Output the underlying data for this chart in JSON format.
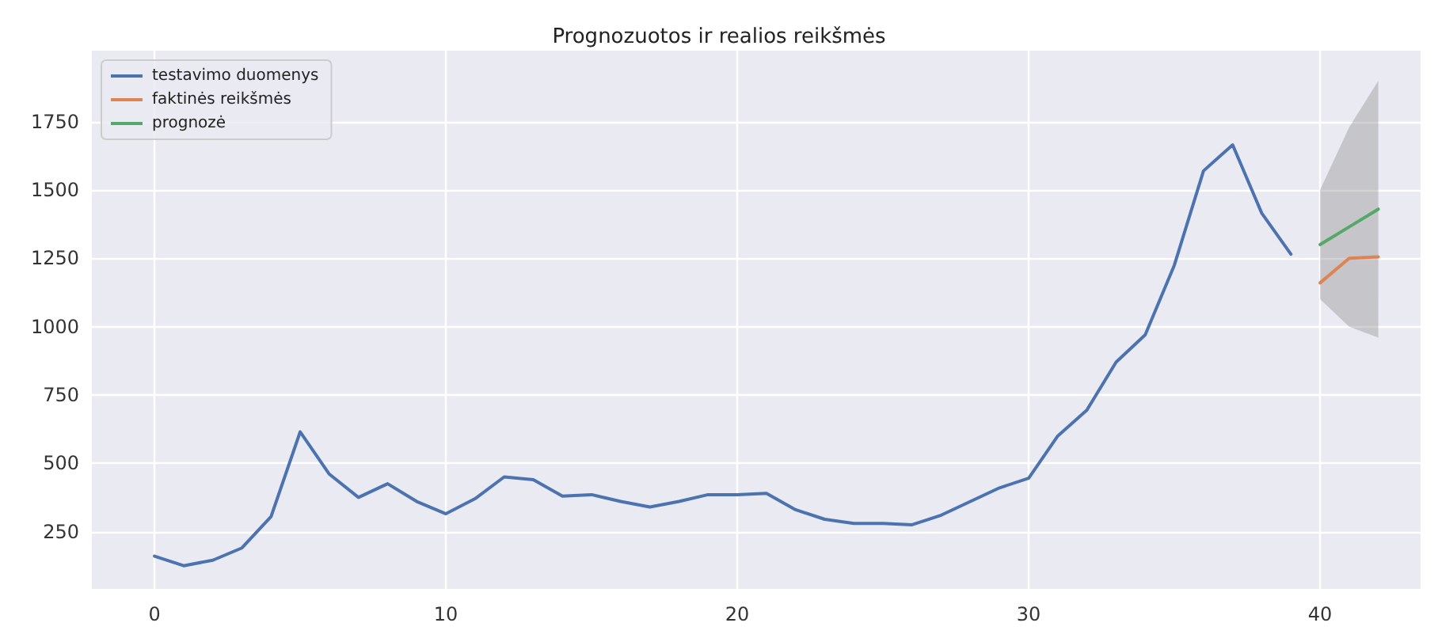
{
  "chart_data": {
    "type": "line",
    "title": "Prognozuotos ir realios reikšmės",
    "xlim": [
      -2.15,
      43.45
    ],
    "ylim": [
      40,
      2010
    ],
    "xticks": [
      0,
      10,
      20,
      30,
      40
    ],
    "yticks": [
      250,
      500,
      750,
      1000,
      1250,
      1500,
      1750
    ],
    "grid": true,
    "legend": "top left",
    "line_style": "solid",
    "marker": "none",
    "series": [
      {
        "name": "testavimo duomenys",
        "color": "#4c72b0",
        "x": [
          0,
          1,
          2,
          3,
          4,
          5,
          6,
          7,
          8,
          9,
          10,
          11,
          12,
          13,
          14,
          15,
          16,
          17,
          18,
          19,
          20,
          21,
          22,
          23,
          24,
          25,
          26,
          27,
          28,
          29,
          30,
          31,
          32,
          33,
          34,
          35,
          36,
          37,
          38,
          39
        ],
        "values": [
          160,
          125,
          145,
          190,
          305,
          615,
          460,
          375,
          425,
          360,
          315,
          370,
          450,
          440,
          380,
          385,
          360,
          340,
          360,
          385,
          385,
          390,
          330,
          295,
          280,
          280,
          275,
          310,
          360,
          410,
          445,
          600,
          695,
          870,
          970,
          1225,
          1570,
          1665,
          1415,
          1265
        ]
      },
      {
        "name": "faktinės reikšmės",
        "color": "#dd8452",
        "x": [
          40,
          41,
          42
        ],
        "values": [
          1160,
          1250,
          1255
        ]
      },
      {
        "name": "prognozė",
        "color": "#55a868",
        "x": [
          40,
          41,
          42
        ],
        "values": [
          1300,
          1365,
          1430
        ],
        "lower": [
          1100,
          1000,
          960
        ],
        "upper": [
          1500,
          1730,
          1900
        ]
      }
    ]
  }
}
